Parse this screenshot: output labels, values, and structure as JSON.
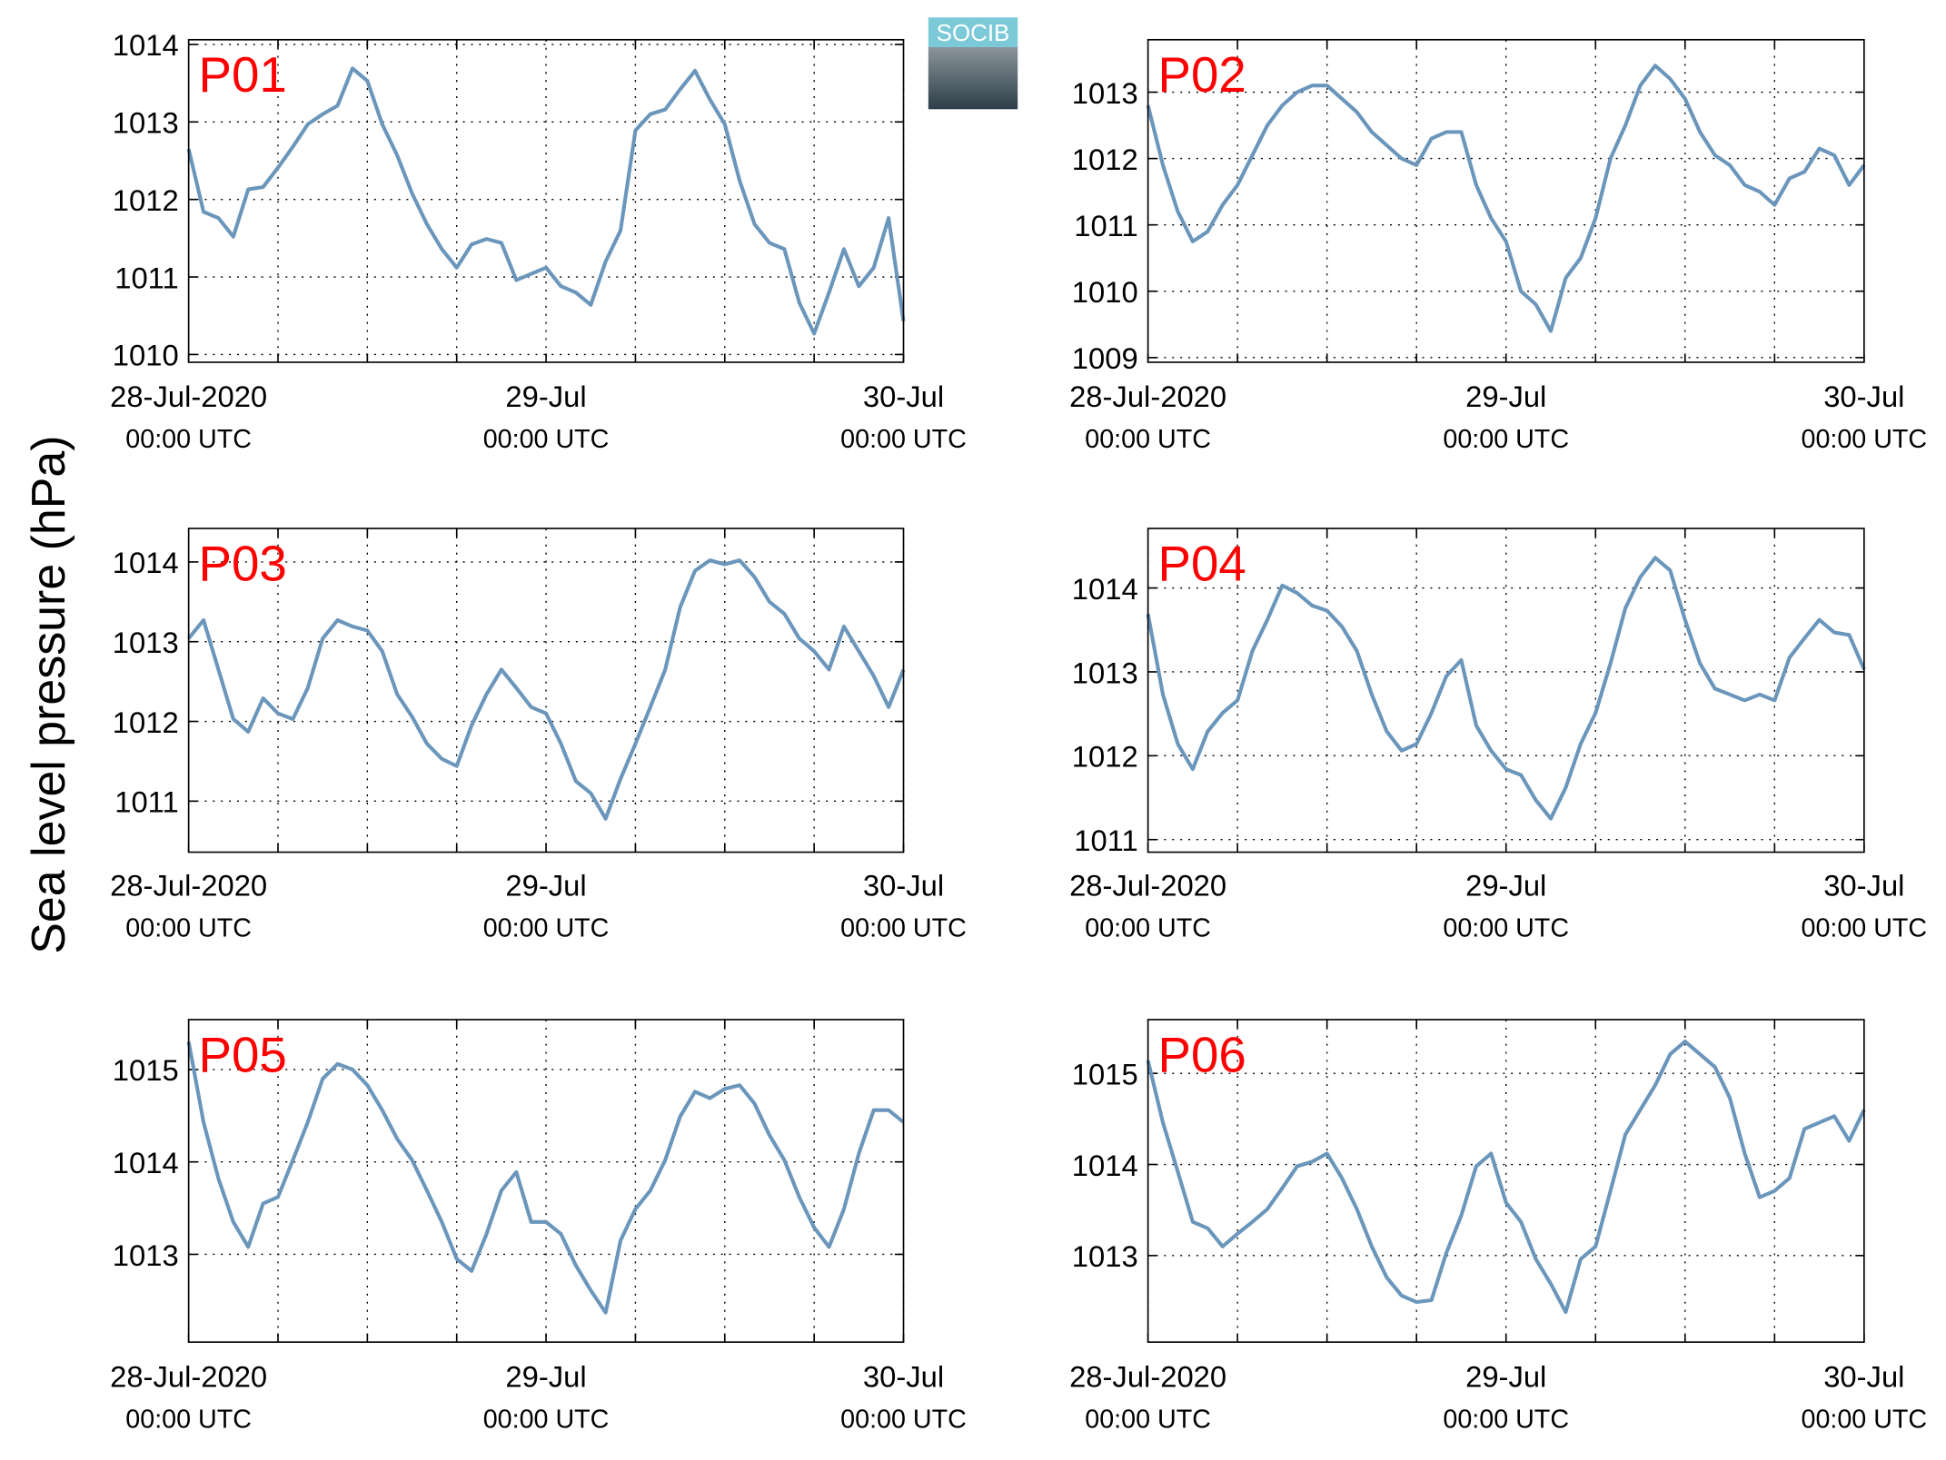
{
  "ylabel": "Sea level pressure (hPa)",
  "logo": "SOCIB",
  "chart_data": [
    {
      "type": "line",
      "title": "P01",
      "color": "#6b96bb",
      "x": [
        0,
        1,
        2,
        3,
        4,
        5,
        6,
        7,
        8,
        9,
        10,
        11,
        12,
        13,
        14,
        15,
        16,
        17,
        18,
        19,
        20,
        21,
        22,
        23,
        24,
        25,
        26,
        27,
        28,
        29,
        30,
        31,
        32,
        33,
        34,
        35,
        36,
        37,
        38,
        39,
        40,
        41,
        42,
        43,
        44,
        45,
        46,
        47,
        48
      ],
      "values": [
        1012.65,
        1011.84,
        1011.76,
        1011.52,
        1012.13,
        1012.16,
        1012.41,
        1012.68,
        1012.97,
        1013.1,
        1013.21,
        1013.69,
        1013.53,
        1012.97,
        1012.57,
        1012.08,
        1011.68,
        1011.36,
        1011.12,
        1011.42,
        1011.49,
        1011.44,
        1010.96,
        1011.04,
        1011.12,
        1010.88,
        1010.8,
        1010.64,
        1011.2,
        1011.6,
        1012.89,
        1013.1,
        1013.16,
        1013.42,
        1013.66,
        1013.29,
        1012.97,
        1012.24,
        1011.68,
        1011.44,
        1011.36,
        1010.67,
        1010.27,
        1010.8,
        1011.36,
        1010.88,
        1011.12,
        1011.76,
        1010.43
      ],
      "xlim": [
        0,
        48
      ],
      "xticks": [
        {
          "value": 0,
          "label": "28-Jul-2020"
        },
        {
          "value": 24,
          "label": "29-Jul"
        },
        {
          "value": 48,
          "label": "30-Jul"
        }
      ],
      "xminor": [
        6,
        12,
        18,
        30,
        36,
        42
      ],
      "x_sublabel": "00:00 UTC",
      "ylim": [
        1009.9,
        1014.06
      ],
      "yticks": [
        1010,
        1011,
        1012,
        1013,
        1014
      ],
      "grid": true
    },
    {
      "type": "line",
      "title": "P02",
      "color": "#6b96bb",
      "x": [
        0,
        1,
        2,
        3,
        4,
        5,
        6,
        7,
        8,
        9,
        10,
        11,
        12,
        13,
        14,
        15,
        16,
        17,
        18,
        19,
        20,
        21,
        22,
        23,
        24,
        25,
        26,
        27,
        28,
        29,
        30,
        31,
        32,
        33,
        34,
        35,
        36,
        37,
        38,
        39,
        40,
        41,
        42,
        43,
        44,
        45,
        46,
        47,
        48
      ],
      "values": [
        1012.8,
        1011.9,
        1011.2,
        1010.75,
        1010.9,
        1011.3,
        1011.6,
        1012.05,
        1012.5,
        1012.8,
        1013.0,
        1013.1,
        1013.1,
        1012.9,
        1012.7,
        1012.4,
        1012.2,
        1012.0,
        1011.9,
        1012.3,
        1012.4,
        1012.4,
        1011.6,
        1011.1,
        1010.75,
        1010.0,
        1009.8,
        1009.4,
        1010.2,
        1010.5,
        1011.1,
        1012.0,
        1012.5,
        1013.1,
        1013.4,
        1013.2,
        1012.9,
        1012.4,
        1012.05,
        1011.9,
        1011.6,
        1011.5,
        1011.3,
        1011.7,
        1011.8,
        1012.15,
        1012.05,
        1011.6,
        1011.9
      ],
      "xlim": [
        0,
        48
      ],
      "xticks": [
        {
          "value": 0,
          "label": "28-Jul-2020"
        },
        {
          "value": 24,
          "label": "29-Jul"
        },
        {
          "value": 48,
          "label": "30-Jul"
        }
      ],
      "xminor": [
        6,
        12,
        18,
        30,
        36,
        42
      ],
      "x_sublabel": "00:00 UTC",
      "ylim": [
        1008.93,
        1013.79
      ],
      "yticks": [
        1009,
        1010,
        1011,
        1012,
        1013
      ],
      "grid": true
    },
    {
      "type": "line",
      "title": "P03",
      "color": "#6b96bb",
      "x": [
        0,
        1,
        2,
        3,
        4,
        5,
        6,
        7,
        8,
        9,
        10,
        11,
        12,
        13,
        14,
        15,
        16,
        17,
        18,
        19,
        20,
        21,
        22,
        23,
        24,
        25,
        26,
        27,
        28,
        29,
        30,
        31,
        32,
        33,
        34,
        35,
        36,
        37,
        38,
        39,
        40,
        41,
        42,
        43,
        44,
        45,
        46,
        47,
        48
      ],
      "values": [
        1013.04,
        1013.27,
        1012.65,
        1012.03,
        1011.87,
        1012.29,
        1012.1,
        1012.03,
        1012.42,
        1013.04,
        1013.27,
        1013.19,
        1013.14,
        1012.88,
        1012.34,
        1012.06,
        1011.72,
        1011.53,
        1011.44,
        1011.95,
        1012.34,
        1012.65,
        1012.42,
        1012.18,
        1012.1,
        1011.72,
        1011.25,
        1011.1,
        1010.78,
        1011.28,
        1011.72,
        1012.18,
        1012.65,
        1013.43,
        1013.89,
        1014.02,
        1013.97,
        1014.02,
        1013.81,
        1013.5,
        1013.35,
        1013.04,
        1012.88,
        1012.65,
        1013.19,
        1012.88,
        1012.57,
        1012.18,
        1012.65
      ],
      "xlim": [
        0,
        48
      ],
      "xticks": [
        {
          "value": 0,
          "label": "28-Jul-2020"
        },
        {
          "value": 24,
          "label": "29-Jul"
        },
        {
          "value": 48,
          "label": "30-Jul"
        }
      ],
      "xminor": [
        6,
        12,
        18,
        30,
        36,
        42
      ],
      "x_sublabel": "00:00 UTC",
      "ylim": [
        1010.36,
        1014.42
      ],
      "yticks": [
        1011,
        1012,
        1013,
        1014
      ],
      "grid": true
    },
    {
      "type": "line",
      "title": "P04",
      "color": "#6b96bb",
      "x": [
        0,
        1,
        2,
        3,
        4,
        5,
        6,
        7,
        8,
        9,
        10,
        11,
        12,
        13,
        14,
        15,
        16,
        17,
        18,
        19,
        20,
        21,
        22,
        23,
        24,
        25,
        26,
        27,
        28,
        29,
        30,
        31,
        32,
        33,
        34,
        35,
        36,
        37,
        38,
        39,
        40,
        41,
        42,
        43,
        44,
        45,
        46,
        47,
        48
      ],
      "values": [
        1013.69,
        1012.73,
        1012.14,
        1011.84,
        1012.29,
        1012.51,
        1012.66,
        1013.25,
        1013.62,
        1014.03,
        1013.94,
        1013.79,
        1013.73,
        1013.54,
        1013.25,
        1012.73,
        1012.29,
        1012.06,
        1012.14,
        1012.51,
        1012.95,
        1013.14,
        1012.36,
        1012.06,
        1011.84,
        1011.77,
        1011.47,
        1011.25,
        1011.62,
        1012.14,
        1012.51,
        1013.1,
        1013.76,
        1014.13,
        1014.36,
        1014.21,
        1013.62,
        1013.1,
        1012.8,
        1012.73,
        1012.66,
        1012.73,
        1012.66,
        1013.17,
        1013.4,
        1013.62,
        1013.47,
        1013.44,
        1013.03
      ],
      "xlim": [
        0,
        48
      ],
      "xticks": [
        {
          "value": 0,
          "label": "28-Jul-2020"
        },
        {
          "value": 24,
          "label": "29-Jul"
        },
        {
          "value": 48,
          "label": "30-Jul"
        }
      ],
      "xminor": [
        6,
        12,
        18,
        30,
        36,
        42
      ],
      "x_sublabel": "00:00 UTC",
      "ylim": [
        1010.85,
        1014.71
      ],
      "yticks": [
        1011,
        1012,
        1013,
        1014
      ],
      "grid": true
    },
    {
      "type": "line",
      "title": "P05",
      "color": "#6b96bb",
      "x": [
        0,
        1,
        2,
        3,
        4,
        5,
        6,
        7,
        8,
        9,
        10,
        11,
        12,
        13,
        14,
        15,
        16,
        17,
        18,
        19,
        20,
        21,
        22,
        23,
        24,
        25,
        26,
        27,
        28,
        29,
        30,
        31,
        32,
        33,
        34,
        35,
        36,
        37,
        38,
        39,
        40,
        41,
        42,
        43,
        44,
        45,
        46,
        47,
        48
      ],
      "values": [
        1015.3,
        1014.43,
        1013.82,
        1013.35,
        1013.08,
        1013.55,
        1013.62,
        1014.02,
        1014.43,
        1014.9,
        1015.06,
        1015.0,
        1014.83,
        1014.56,
        1014.25,
        1014.02,
        1013.69,
        1013.35,
        1012.95,
        1012.82,
        1013.22,
        1013.69,
        1013.89,
        1013.35,
        1013.35,
        1013.22,
        1012.88,
        1012.61,
        1012.37,
        1013.15,
        1013.49,
        1013.69,
        1014.02,
        1014.49,
        1014.76,
        1014.69,
        1014.79,
        1014.83,
        1014.63,
        1014.29,
        1014.02,
        1013.62,
        1013.29,
        1013.08,
        1013.49,
        1014.09,
        1014.56,
        1014.56,
        1014.43
      ],
      "xlim": [
        0,
        48
      ],
      "xticks": [
        {
          "value": 0,
          "label": "28-Jul-2020"
        },
        {
          "value": 24,
          "label": "29-Jul"
        },
        {
          "value": 48,
          "label": "30-Jul"
        }
      ],
      "xminor": [
        6,
        12,
        18,
        30,
        36,
        42
      ],
      "x_sublabel": "00:00 UTC",
      "ylim": [
        1012.05,
        1015.54
      ],
      "yticks": [
        1013,
        1014,
        1015
      ],
      "grid": true
    },
    {
      "type": "line",
      "title": "P06",
      "color": "#6b96bb",
      "x": [
        0,
        1,
        2,
        3,
        4,
        5,
        6,
        7,
        8,
        9,
        10,
        11,
        12,
        13,
        14,
        15,
        16,
        17,
        18,
        19,
        20,
        21,
        22,
        23,
        24,
        25,
        26,
        27,
        28,
        29,
        30,
        31,
        32,
        33,
        34,
        35,
        36,
        37,
        38,
        39,
        40,
        41,
        42,
        43,
        44,
        45,
        46,
        47,
        48
      ],
      "values": [
        1015.14,
        1014.46,
        1013.92,
        1013.37,
        1013.3,
        1013.1,
        1013.24,
        1013.37,
        1013.51,
        1013.74,
        1013.98,
        1014.03,
        1014.12,
        1013.85,
        1013.51,
        1013.1,
        1012.76,
        1012.56,
        1012.49,
        1012.51,
        1013.03,
        1013.44,
        1013.98,
        1014.12,
        1013.58,
        1013.37,
        1012.96,
        1012.69,
        1012.38,
        1012.96,
        1013.1,
        1013.71,
        1014.33,
        1014.6,
        1014.87,
        1015.21,
        1015.35,
        1015.21,
        1015.07,
        1014.73,
        1014.12,
        1013.64,
        1013.71,
        1013.85,
        1014.39,
        1014.46,
        1014.53,
        1014.26,
        1014.6
      ],
      "xlim": [
        0,
        48
      ],
      "xticks": [
        {
          "value": 0,
          "label": "28-Jul-2020"
        },
        {
          "value": 24,
          "label": "29-Jul"
        },
        {
          "value": 48,
          "label": "30-Jul"
        }
      ],
      "xminor": [
        6,
        12,
        18,
        30,
        36,
        42
      ],
      "x_sublabel": "00:00 UTC",
      "ylim": [
        1012.05,
        1015.59
      ],
      "yticks": [
        1013,
        1014,
        1015
      ],
      "grid": true
    }
  ]
}
